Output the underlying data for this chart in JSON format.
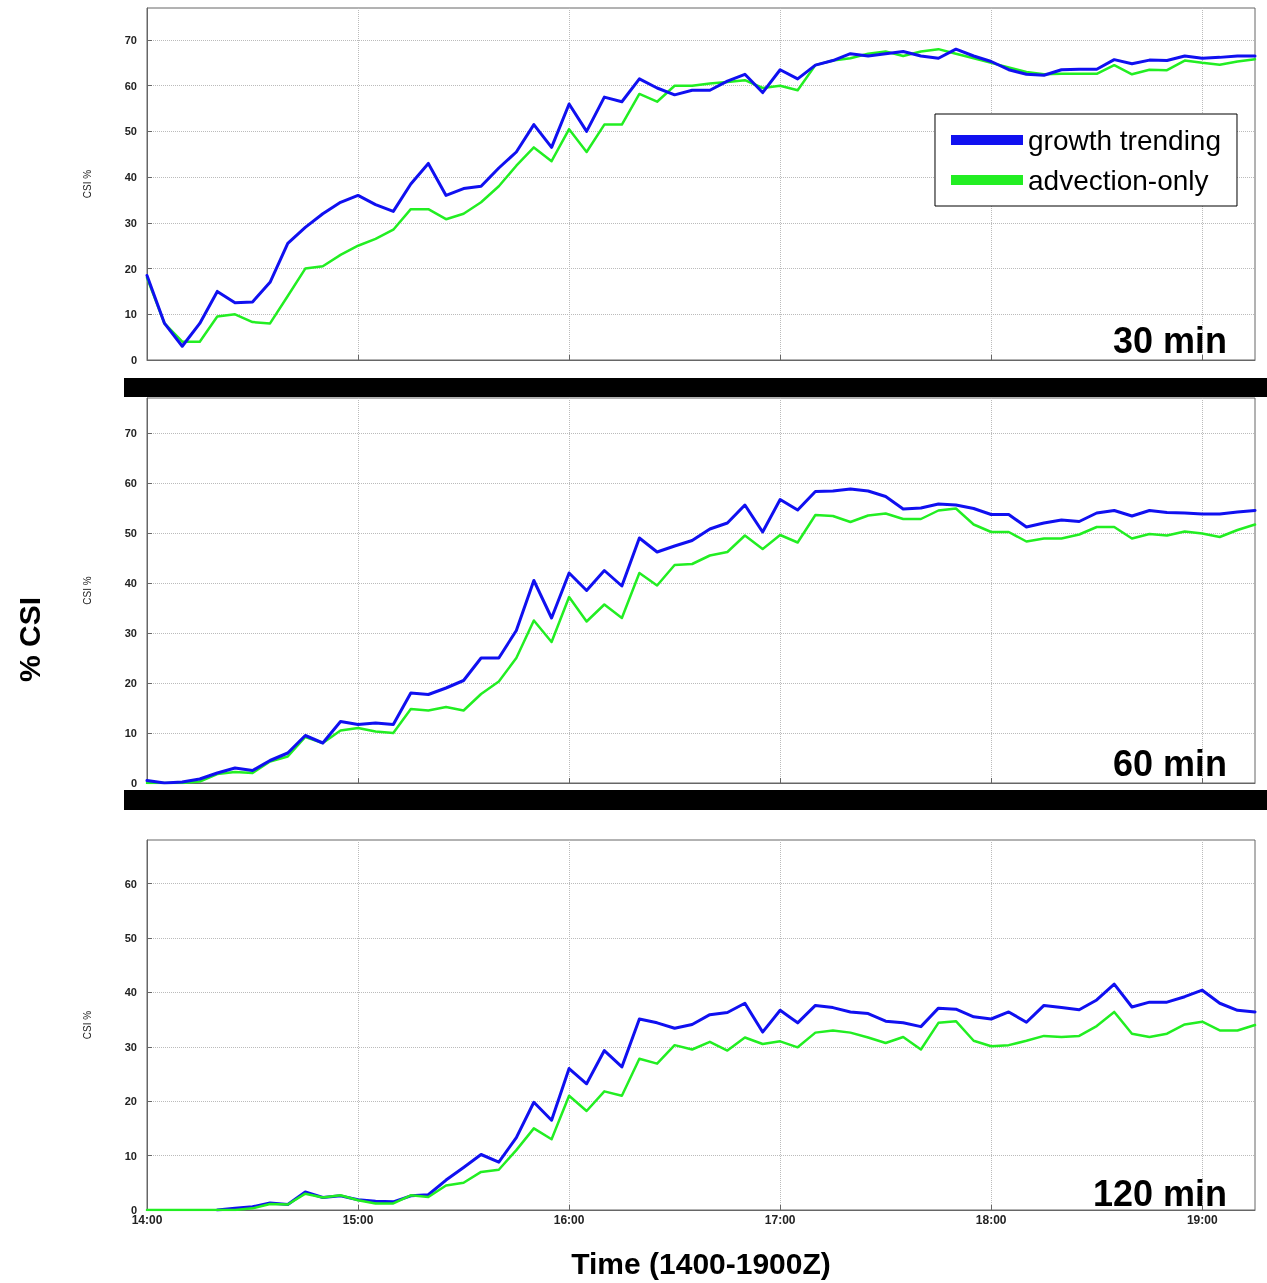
{
  "chart_data": [
    {
      "type": "line",
      "ylabel": "CSI %",
      "annotations": [
        "30 min"
      ],
      "legend": "top right",
      "grid": true,
      "marker": "none",
      "line_style": "solid",
      "tick_labels": "y",
      "xlim": [
        14,
        19.25
      ],
      "xticks": [
        14,
        15,
        16,
        17,
        18,
        19
      ],
      "ylim": [
        0,
        77
      ],
      "yticks": [
        0,
        10,
        20,
        30,
        40,
        50,
        60,
        70
      ],
      "x": [
        14,
        14.083,
        14.167,
        14.25,
        14.333,
        14.417,
        14.5,
        14.583,
        14.667,
        14.75,
        14.833,
        14.917,
        15,
        15.083,
        15.167,
        15.25,
        15.333,
        15.417,
        15.5,
        15.583,
        15.667,
        15.75,
        15.833,
        15.917,
        16,
        16.083,
        16.167,
        16.25,
        16.333,
        16.417,
        16.5,
        16.583,
        16.667,
        16.75,
        16.833,
        16.917,
        17,
        17.083,
        17.167,
        17.25,
        17.333,
        17.417,
        17.5,
        17.583,
        17.667,
        17.75,
        17.833,
        17.917,
        18,
        18.083,
        18.167,
        18.25,
        18.333,
        18.417,
        18.5,
        18.583,
        18.667,
        18.75,
        18.833,
        18.917,
        19,
        19.083,
        19.167,
        19.25
      ],
      "series": [
        {
          "name": "growth trending",
          "color": "#1010f0",
          "values": [
            18.5,
            8,
            3,
            8,
            15,
            12.5,
            12.7,
            17,
            25.5,
            29,
            32,
            34.5,
            36,
            34,
            32.5,
            38.5,
            43,
            36,
            37.5,
            38,
            42,
            45.5,
            51.5,
            46.5,
            56,
            50,
            57.5,
            56.5,
            61.5,
            59.5,
            58,
            59,
            59,
            61,
            62.5,
            58.5,
            63.5,
            61.5,
            64.5,
            65.5,
            67,
            66.5,
            67,
            67.5,
            66.5,
            66,
            68,
            66.5,
            65.3,
            63.5,
            62.5,
            62.3,
            63.5,
            63.6,
            63.6,
            65.7,
            64.8,
            65.6,
            65.5,
            66.5,
            66,
            66.2,
            66.5,
            66.5
          ]
        },
        {
          "name": "advection-only",
          "color": "#22ee22",
          "values": [
            18,
            8,
            4,
            4,
            9.5,
            10,
            8.3,
            8,
            14,
            20,
            20.5,
            23,
            25,
            26.5,
            28.5,
            33,
            33,
            30.8,
            32,
            34.5,
            38,
            42.5,
            46.5,
            43.5,
            50.5,
            45.5,
            51.5,
            51.5,
            58.2,
            56.5,
            60,
            60,
            60.5,
            60.8,
            61.2,
            59.5,
            60,
            59,
            64.5,
            65.5,
            66,
            67,
            67.5,
            66.5,
            67.5,
            68,
            67,
            66,
            65,
            64,
            63,
            62.5,
            62.6,
            62.6,
            62.6,
            64.5,
            62.5,
            63.5,
            63.4,
            65.5,
            65,
            64.6,
            65.3,
            65.8
          ]
        }
      ]
    },
    {
      "type": "line",
      "ylabel": "CSI %",
      "annotations": [
        "60 min",
        "% CSI"
      ],
      "grid": true,
      "marker": "none",
      "line_style": "solid",
      "tick_labels": "y",
      "xlim": [
        14,
        19.25
      ],
      "xticks": [
        14,
        15,
        16,
        17,
        18,
        19
      ],
      "ylim": [
        0,
        77
      ],
      "yticks": [
        0,
        10,
        20,
        30,
        40,
        50,
        60,
        70
      ],
      "x": [
        14,
        14.083,
        14.167,
        14.25,
        14.333,
        14.417,
        14.5,
        14.583,
        14.667,
        14.75,
        14.833,
        14.917,
        15,
        15.083,
        15.167,
        15.25,
        15.333,
        15.417,
        15.5,
        15.583,
        15.667,
        15.75,
        15.833,
        15.917,
        16,
        16.083,
        16.167,
        16.25,
        16.333,
        16.417,
        16.5,
        16.583,
        16.667,
        16.75,
        16.833,
        16.917,
        17,
        17.083,
        17.167,
        17.25,
        17.333,
        17.417,
        17.5,
        17.583,
        17.667,
        17.75,
        17.833,
        17.917,
        18,
        18.083,
        18.167,
        18.25,
        18.333,
        18.417,
        18.5,
        18.583,
        18.667,
        18.75,
        18.833,
        18.917,
        19,
        19.083,
        19.167,
        19.25
      ],
      "series": [
        {
          "color": "#1010f0",
          "values": [
            0.5,
            0,
            0.2,
            0.8,
            2,
            3,
            2.5,
            4.5,
            6,
            9.5,
            8,
            12.3,
            11.7,
            12,
            11.7,
            18,
            17.7,
            19,
            20.5,
            25,
            25,
            30.5,
            40.5,
            33,
            42,
            38.5,
            42.5,
            39.4,
            49,
            46.2,
            47.4,
            48.5,
            50.8,
            52,
            55.6,
            50.2,
            56.7,
            54.6,
            58.3,
            58.4,
            58.8,
            58.4,
            57.3,
            54.8,
            55,
            55.8,
            55.6,
            54.9,
            53.7,
            53.7,
            51.2,
            52,
            52.6,
            52.3,
            54,
            54.5,
            53.4,
            54.5,
            54.1,
            54,
            53.8,
            53.8,
            54.2,
            54.5
          ]
        },
        {
          "color": "#22ee22",
          "values": [
            0,
            0,
            0,
            0.3,
            1.8,
            2.2,
            2,
            4.3,
            5.3,
            9.2,
            8,
            10.5,
            11,
            10.3,
            10,
            14.8,
            14.5,
            15.2,
            14.5,
            17.8,
            20.3,
            25,
            32.5,
            28.2,
            37.2,
            32.3,
            35.7,
            33,
            42,
            39.5,
            43.6,
            43.8,
            45.5,
            46.2,
            49.5,
            46.8,
            49.6,
            48.1,
            53.6,
            53.4,
            52.2,
            53.5,
            53.9,
            52.8,
            52.8,
            54.5,
            54.9,
            51.7,
            50.2,
            50.2,
            48.3,
            48.9,
            48.9,
            49.7,
            51.2,
            51.2,
            48.9,
            49.8,
            49.5,
            50.3,
            49.9,
            49.2,
            50.6,
            51.7
          ]
        }
      ]
    },
    {
      "type": "line",
      "ylabel": "CSI %",
      "xlabel": "Time (1400-1900Z)",
      "annotations": [
        "120 min"
      ],
      "grid": true,
      "marker": "none",
      "line_style": "solid",
      "xlim": [
        14,
        19.25
      ],
      "xticks": [
        {
          "value": 14,
          "label": "14:00"
        },
        {
          "value": 15,
          "label": "15:00"
        },
        {
          "value": 16,
          "label": "16:00"
        },
        {
          "value": 17,
          "label": "17:00"
        },
        {
          "value": 18,
          "label": "18:00"
        },
        {
          "value": 19,
          "label": "19:00"
        }
      ],
      "ylim": [
        0,
        68
      ],
      "yticks": [
        0,
        10,
        20,
        30,
        40,
        50,
        60
      ],
      "x": [
        14,
        14.083,
        14.167,
        14.25,
        14.333,
        14.417,
        14.5,
        14.583,
        14.667,
        14.75,
        14.833,
        14.917,
        15,
        15.083,
        15.167,
        15.25,
        15.333,
        15.417,
        15.5,
        15.583,
        15.667,
        15.75,
        15.833,
        15.917,
        16,
        16.083,
        16.167,
        16.25,
        16.333,
        16.417,
        16.5,
        16.583,
        16.667,
        16.75,
        16.833,
        16.917,
        17,
        17.083,
        17.167,
        17.25,
        17.333,
        17.417,
        17.5,
        17.583,
        17.667,
        17.75,
        17.833,
        17.917,
        18,
        18.083,
        18.167,
        18.25,
        18.333,
        18.417,
        18.5,
        18.583,
        18.667,
        18.75,
        18.833,
        18.917,
        19,
        19.083,
        19.167,
        19.25
      ],
      "series": [
        {
          "color": "#1010f0",
          "values": [
            null,
            null,
            null,
            null,
            0,
            0.3,
            0.6,
            1.3,
            1,
            3.3,
            2.3,
            2.6,
            1.9,
            1.6,
            1.5,
            2.6,
            2.8,
            5.5,
            7.8,
            10.2,
            8.8,
            13.3,
            19.8,
            16.5,
            26,
            23.2,
            29.3,
            26.3,
            35.1,
            34.4,
            33.4,
            34.1,
            35.9,
            36.3,
            38,
            32.7,
            36.7,
            34.4,
            37.6,
            37.2,
            36.4,
            36.1,
            34.7,
            34.4,
            33.7,
            37.1,
            36.9,
            35.5,
            35.1,
            36.4,
            34.5,
            37.6,
            37.2,
            36.8,
            38.6,
            41.5,
            37.3,
            38.2,
            38.2,
            39.2,
            40.4,
            38,
            36.7,
            36.4
          ]
        },
        {
          "color": "#22ee22",
          "values": [
            0,
            0,
            0,
            0,
            0,
            0,
            0.3,
            1.1,
            1,
            3,
            2.3,
            2.7,
            1.8,
            1.2,
            1.2,
            2.7,
            2.4,
            4.5,
            5,
            7,
            7.4,
            11,
            15,
            13,
            21,
            18.2,
            21.8,
            21,
            27.8,
            26.9,
            30.3,
            29.5,
            30.9,
            29.3,
            31.7,
            30.5,
            31,
            29.9,
            32.6,
            33,
            32.6,
            31.7,
            30.7,
            31.8,
            29.5,
            34.4,
            34.7,
            31.1,
            30.1,
            30.3,
            31.1,
            32,
            31.8,
            32,
            33.8,
            36.4,
            32.4,
            31.8,
            32.4,
            34.1,
            34.6,
            33,
            33,
            34
          ]
        }
      ]
    }
  ]
}
